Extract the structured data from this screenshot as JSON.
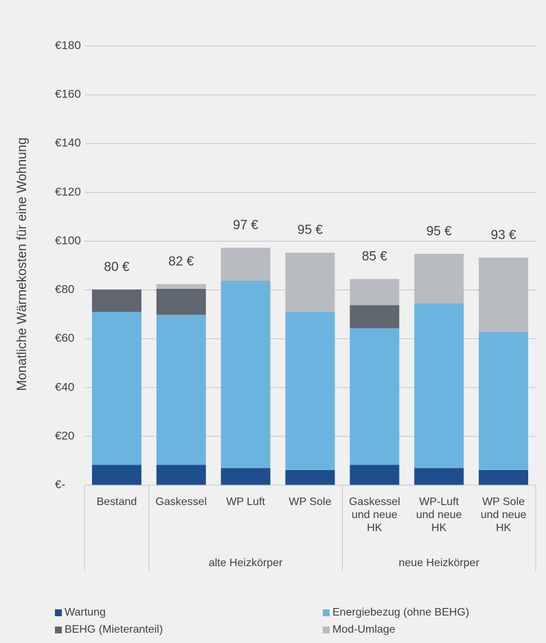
{
  "chart_data": {
    "type": "stacked_bar",
    "ylabel": "Monatliche Wärmekosten für eine Wohnung",
    "categories": [
      "Bestand",
      "Gaskessel",
      "WP Luft",
      "WP Sole",
      "Gaskessel\nund neue\nHK",
      "WP-Luft\nund neue\nHK",
      "WP Sole\nund neue\nHK"
    ],
    "groups": [
      {
        "label": "alte Heizkörper",
        "span": [
          1,
          3
        ]
      },
      {
        "label": "neue Heizkörper",
        "span": [
          4,
          6
        ]
      }
    ],
    "series": [
      {
        "name": "Wartung",
        "color": "#1f4e8c",
        "values": [
          8.3,
          8.3,
          7.0,
          6.2,
          8.3,
          7.0,
          6.2
        ]
      },
      {
        "name": "Energiebezug (ohne BEHG)",
        "color": "#6cb4e0",
        "values": [
          62.7,
          61.5,
          76.8,
          64.8,
          56.0,
          67.5,
          56.6
        ]
      },
      {
        "name": "BEHG (Mieteranteil)",
        "color": "#5f6670",
        "values": [
          9.2,
          10.7,
          0,
          0,
          9.5,
          0,
          0
        ]
      },
      {
        "name": "Mod-Umlage",
        "color": "#b8bcc0",
        "values": [
          0,
          1.9,
          13.5,
          24.3,
          10.7,
          20.3,
          30.5
        ]
      }
    ],
    "totals": [
      80,
      82,
      97,
      95,
      85,
      95,
      93
    ],
    "total_labels": [
      "80 €",
      "82 €",
      "97 €",
      "95 €",
      "85 €",
      "95 €",
      "93 €"
    ],
    "ylim": [
      0,
      180
    ],
    "yticks": [
      {
        "value": 0,
        "label": "€-"
      },
      {
        "value": 20,
        "label": "€20"
      },
      {
        "value": 40,
        "label": "€40"
      },
      {
        "value": 60,
        "label": "€60"
      },
      {
        "value": 80,
        "label": "€80"
      },
      {
        "value": 100,
        "label": "€100"
      },
      {
        "value": 120,
        "label": "€120"
      },
      {
        "value": 140,
        "label": "€140"
      },
      {
        "value": 160,
        "label": "€160"
      },
      {
        "value": 180,
        "label": "€180"
      }
    ],
    "grid": true
  }
}
